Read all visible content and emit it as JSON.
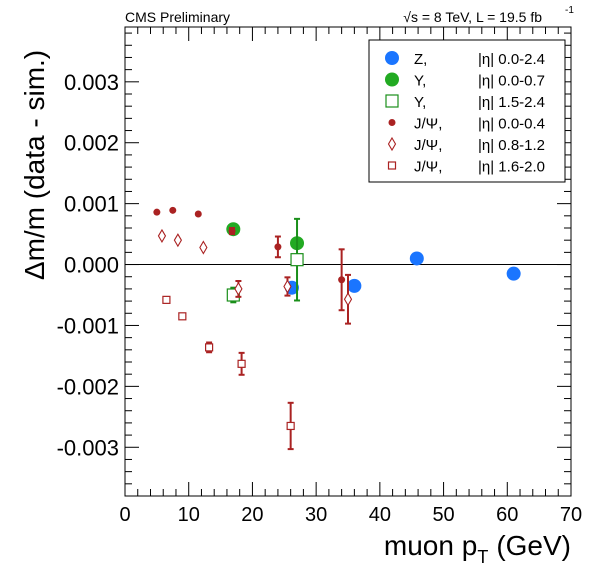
{
  "chart_data": {
    "type": "scatter",
    "header_left": "CMS Preliminary",
    "header_right": "√s = 8 TeV, L = 19.5 fb",
    "header_right_sup": "-1",
    "xlabel": "muon p",
    "xlabel_sub": "T",
    "xlabel_unit": "(GeV)",
    "ylabel": "Δm/m (data - sim.)",
    "xlim": [
      0,
      70
    ],
    "ylim": [
      -0.0038,
      0.0039
    ],
    "x_ticks": [
      0,
      10,
      20,
      30,
      40,
      50,
      60,
      70
    ],
    "x_tick_labels": [
      "0",
      "10",
      "20",
      "30",
      "40",
      "50",
      "60",
      "70"
    ],
    "y_ticks": [
      -0.003,
      -0.002,
      -0.001,
      0.0,
      0.001,
      0.002,
      0.003
    ],
    "y_tick_labels": [
      "-0.003",
      "-0.002",
      "-0.001",
      "0.000",
      "0.001",
      "0.002",
      "0.003"
    ],
    "zero_line": true,
    "grid": false,
    "legend_position": "top-right",
    "series": [
      {
        "name": "Z,",
        "eta_label": "|η| 0.0-2.4",
        "marker": "circle-large",
        "color": "#1a75ff",
        "points": [
          {
            "x": 26.2,
            "y": -0.00038,
            "err": 0
          },
          {
            "x": 36.0,
            "y": -0.00035,
            "err": 0
          },
          {
            "x": 45.8,
            "y": 0.0001,
            "err": 0
          },
          {
            "x": 61.0,
            "y": -0.00015,
            "err": 0
          }
        ]
      },
      {
        "name": "Υ,",
        "eta_label": "|η| 0.0-0.7",
        "marker": "circle-large",
        "color": "#22aa22",
        "points": [
          {
            "x": 17.0,
            "y": 0.00058,
            "err": 0
          },
          {
            "x": 27.0,
            "y": 0.00035,
            "err": 0
          }
        ]
      },
      {
        "name": "Υ,",
        "eta_label": "|η| 1.5-2.4",
        "marker": "square-open",
        "color": "#1a8f1a",
        "points": [
          {
            "x": 17.0,
            "y": -0.0005,
            "err": 0.00012
          },
          {
            "x": 27.0,
            "y": 8e-05,
            "err": 0.00067
          }
        ]
      },
      {
        "name": "J/Ψ,",
        "eta_label": "|η| 0.0-0.4",
        "marker": "circle-small",
        "color": "#aa2222",
        "points": [
          {
            "x": 5.0,
            "y": 0.00086,
            "err": 0
          },
          {
            "x": 7.5,
            "y": 0.00089,
            "err": 0
          },
          {
            "x": 11.5,
            "y": 0.00083,
            "err": 0
          },
          {
            "x": 16.8,
            "y": 0.00055,
            "err": 5e-05
          },
          {
            "x": 24.0,
            "y": 0.00029,
            "err": 0.00017
          },
          {
            "x": 34.0,
            "y": -0.00025,
            "err": 0.0005
          }
        ]
      },
      {
        "name": "J/Ψ,",
        "eta_label": "|η| 0.8-1.2",
        "marker": "diamond-open",
        "color": "#aa2222",
        "points": [
          {
            "x": 5.8,
            "y": 0.00047,
            "err": 0
          },
          {
            "x": 8.3,
            "y": 0.0004,
            "err": 0
          },
          {
            "x": 12.3,
            "y": 0.00028,
            "err": 0
          },
          {
            "x": 17.8,
            "y": -0.0004,
            "err": 0.00013
          },
          {
            "x": 25.5,
            "y": -0.00036,
            "err": 0.00015
          },
          {
            "x": 35.0,
            "y": -0.00057,
            "err": 0.0004
          }
        ]
      },
      {
        "name": "J/Ψ,",
        "eta_label": "|η| 1.6-2.0",
        "marker": "square-small-open",
        "color": "#aa2222",
        "points": [
          {
            "x": 6.5,
            "y": -0.00058,
            "err": 0
          },
          {
            "x": 9.0,
            "y": -0.00085,
            "err": 0
          },
          {
            "x": 13.2,
            "y": -0.00136,
            "err": 8e-05
          },
          {
            "x": 18.3,
            "y": -0.00163,
            "err": 0.00018
          },
          {
            "x": 26.0,
            "y": -0.00265,
            "err": 0.00038
          }
        ]
      }
    ]
  }
}
